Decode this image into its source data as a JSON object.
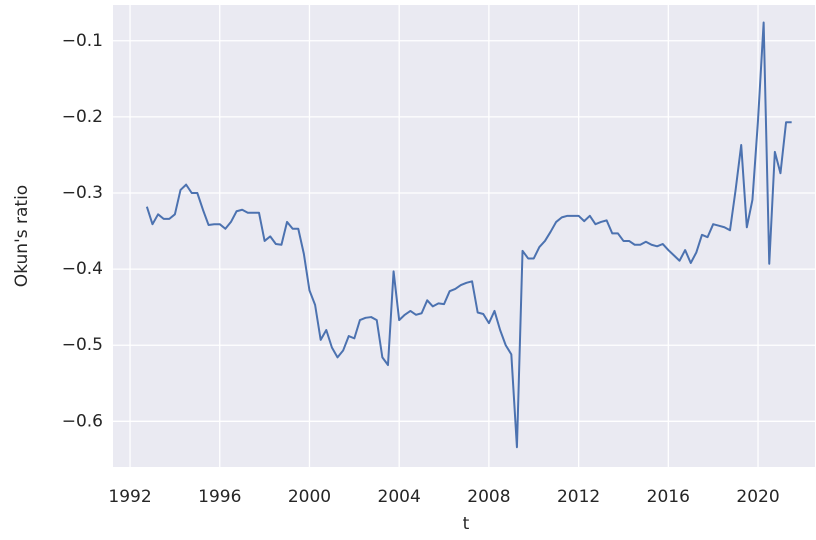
{
  "chart_data": {
    "type": "line",
    "xlabel": "t",
    "ylabel": "Okun's ratio",
    "x": [
      1992.75,
      1993.0,
      1993.25,
      1993.5,
      1993.75,
      1994.0,
      1994.25,
      1994.5,
      1994.75,
      1995.0,
      1995.25,
      1995.5,
      1995.75,
      1996.0,
      1996.25,
      1996.5,
      1996.75,
      1997.0,
      1997.25,
      1997.5,
      1997.75,
      1998.0,
      1998.25,
      1998.5,
      1998.75,
      1999.0,
      1999.25,
      1999.5,
      1999.75,
      2000.0,
      2000.25,
      2000.5,
      2000.75,
      2001.0,
      2001.25,
      2001.5,
      2001.75,
      2002.0,
      2002.25,
      2002.5,
      2002.75,
      2003.0,
      2003.25,
      2003.5,
      2003.75,
      2004.0,
      2004.25,
      2004.5,
      2004.75,
      2005.0,
      2005.25,
      2005.5,
      2005.75,
      2006.0,
      2006.25,
      2006.5,
      2006.75,
      2007.0,
      2007.25,
      2007.5,
      2007.75,
      2008.0,
      2008.25,
      2008.5,
      2008.75,
      2009.0,
      2009.25,
      2009.5,
      2009.75,
      2010.0,
      2010.25,
      2010.5,
      2010.75,
      2011.0,
      2011.25,
      2011.5,
      2011.75,
      2012.0,
      2012.25,
      2012.5,
      2012.75,
      2013.0,
      2013.25,
      2013.5,
      2013.75,
      2014.0,
      2014.25,
      2014.5,
      2014.75,
      2015.0,
      2015.25,
      2015.5,
      2015.75,
      2016.0,
      2016.25,
      2016.5,
      2016.75,
      2017.0,
      2017.25,
      2017.5,
      2017.75,
      2018.0,
      2018.25,
      2018.5,
      2018.75,
      2019.0,
      2019.25,
      2019.5,
      2019.75,
      2020.0,
      2020.25,
      2020.5,
      2020.75,
      2021.0,
      2021.25,
      2021.5
    ],
    "series": [
      {
        "color": "#4c72b0",
        "values": [
          -0.318,
          -0.341,
          -0.328,
          -0.334,
          -0.334,
          -0.328,
          -0.296,
          -0.289,
          -0.3,
          -0.3,
          -0.322,
          -0.342,
          -0.341,
          -0.341,
          -0.347,
          -0.338,
          -0.324,
          -0.322,
          -0.326,
          -0.326,
          -0.326,
          -0.363,
          -0.357,
          -0.367,
          -0.368,
          -0.338,
          -0.347,
          -0.347,
          -0.38,
          -0.428,
          -0.447,
          -0.493,
          -0.48,
          -0.503,
          -0.516,
          -0.507,
          -0.488,
          -0.491,
          -0.467,
          -0.464,
          -0.463,
          -0.467,
          -0.516,
          -0.526,
          -0.403,
          -0.467,
          -0.46,
          -0.455,
          -0.46,
          -0.458,
          -0.441,
          -0.449,
          -0.445,
          -0.446,
          -0.429,
          -0.426,
          -0.421,
          -0.418,
          -0.416,
          -0.457,
          -0.459,
          -0.471,
          -0.455,
          -0.48,
          -0.5,
          -0.512,
          -0.634,
          -0.376,
          -0.386,
          -0.386,
          -0.371,
          -0.363,
          -0.351,
          -0.338,
          -0.332,
          -0.33,
          -0.33,
          -0.33,
          -0.337,
          -0.33,
          -0.341,
          -0.338,
          -0.336,
          -0.353,
          -0.353,
          -0.363,
          -0.363,
          -0.368,
          -0.368,
          -0.364,
          -0.368,
          -0.37,
          -0.367,
          -0.375,
          -0.382,
          -0.389,
          -0.375,
          -0.392,
          -0.378,
          -0.355,
          -0.358,
          -0.341,
          -0.343,
          -0.345,
          -0.349,
          -0.296,
          -0.237,
          -0.345,
          -0.309,
          -0.204,
          -0.076,
          -0.393,
          -0.246,
          -0.274,
          -0.207,
          -0.207
        ]
      }
    ],
    "xlim": [
      1991.24,
      2022.54
    ],
    "ylim": [
      -0.66,
      -0.053
    ],
    "xticks": [
      1992,
      1996,
      2000,
      2004,
      2008,
      2012,
      2016,
      2020
    ],
    "yticks": [
      {
        "value": -0.6,
        "label": "−0.6"
      },
      {
        "value": -0.5,
        "label": "−0.5"
      },
      {
        "value": -0.4,
        "label": "−0.4"
      },
      {
        "value": -0.3,
        "label": "−0.3"
      },
      {
        "value": -0.2,
        "label": "−0.2"
      },
      {
        "value": -0.1,
        "label": "−0.1"
      }
    ],
    "grid": true
  }
}
